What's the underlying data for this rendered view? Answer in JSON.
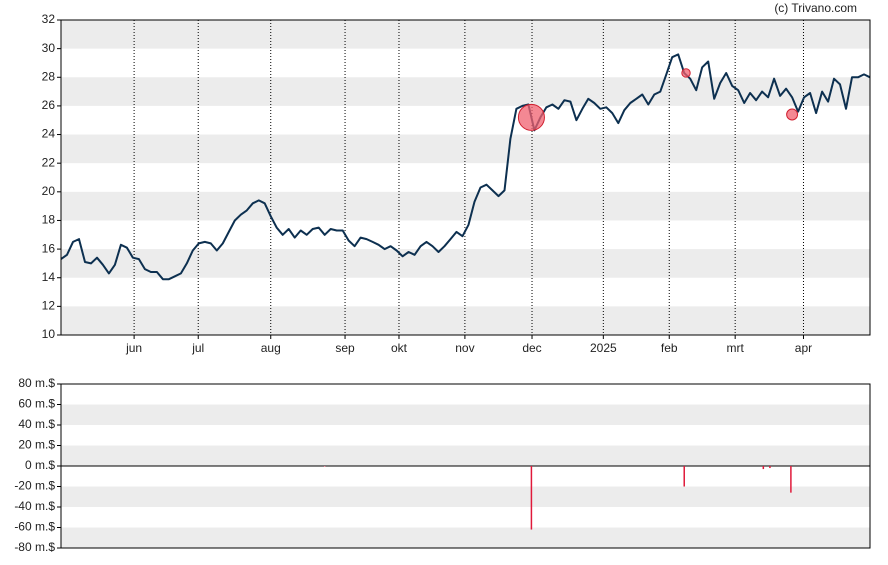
{
  "credit": "(c) Trivano.com",
  "chart_data": [
    {
      "type": "line",
      "color": "#0d3050",
      "bands": true,
      "values": [
        15.3,
        15.6,
        16.5,
        16.7,
        15.1,
        15.0,
        15.4,
        14.9,
        14.3,
        14.9,
        16.3,
        16.1,
        15.4,
        15.3,
        14.6,
        14.4,
        14.4,
        13.9,
        13.9,
        14.1,
        14.3,
        15.0,
        15.9,
        16.4,
        16.5,
        16.4,
        15.9,
        16.4,
        17.2,
        18.0,
        18.4,
        18.7,
        19.2,
        19.4,
        19.2,
        18.3,
        17.5,
        17.0,
        17.4,
        16.8,
        17.3,
        17.0,
        17.4,
        17.5,
        17.0,
        17.4,
        17.3,
        17.3,
        16.6,
        16.2,
        16.8,
        16.7,
        16.5,
        16.3,
        16.0,
        16.2,
        15.9,
        15.5,
        15.8,
        15.6,
        16.2,
        16.5,
        16.2,
        15.8,
        16.2,
        16.7,
        17.2,
        16.9,
        17.7,
        19.3,
        20.3,
        20.5,
        20.1,
        19.7,
        20.1,
        23.7,
        25.8,
        26.0,
        26.1,
        24.3,
        25.2,
        25.9,
        26.1,
        25.8,
        26.4,
        26.3,
        25.0,
        25.8,
        26.5,
        26.2,
        25.8,
        25.9,
        25.5,
        24.8,
        25.7,
        26.2,
        26.5,
        26.8,
        26.1,
        26.8,
        27.0,
        28.2,
        29.4,
        29.6,
        28.3,
        27.9,
        27.1,
        28.7,
        29.1,
        26.5,
        27.6,
        28.3,
        27.4,
        27.1,
        26.2,
        26.9,
        26.4,
        27.0,
        26.6,
        27.9,
        26.7,
        27.2,
        26.6,
        25.6,
        26.6,
        26.9,
        25.5,
        27.0,
        26.3,
        27.9,
        27.5,
        25.8,
        28.0,
        28.0,
        28.2,
        28.0
      ],
      "markers": {
        "color": "#f0606f",
        "x": [
          78.5,
          104.3,
          122
        ],
        "values": [
          25.2,
          28.3,
          25.4
        ],
        "sizes": [
          62,
          20,
          26
        ]
      },
      "xlim": [
        0,
        135
      ],
      "xticks": [
        {
          "value": 12.2,
          "label": "jun"
        },
        {
          "value": 22.9,
          "label": "jul"
        },
        {
          "value": 35,
          "label": "aug"
        },
        {
          "value": 47.4,
          "label": "sep"
        },
        {
          "value": 56.4,
          "label": "okt"
        },
        {
          "value": 67.4,
          "label": "nov"
        },
        {
          "value": 78.6,
          "label": "dec"
        },
        {
          "value": 90.5,
          "label": "2025"
        },
        {
          "value": 101.5,
          "label": "feb"
        },
        {
          "value": 112.5,
          "label": "mrt"
        },
        {
          "value": 123.9,
          "label": "apr"
        }
      ],
      "ylim": [
        10,
        32
      ],
      "yticks": [
        10,
        12,
        14,
        16,
        18,
        20,
        22,
        24,
        26,
        28,
        30,
        32
      ]
    },
    {
      "type": "bar",
      "color": "#e0193a",
      "bands": true,
      "x": [
        44,
        78.5,
        104,
        117.2,
        118.3,
        121.8
      ],
      "values": [
        -0.5,
        -62,
        -20,
        -3,
        -2,
        -26
      ],
      "xlim": [
        0,
        135
      ],
      "ylim": [
        -80,
        80
      ],
      "yticks": [
        {
          "value": -80,
          "label": "-80 m.$"
        },
        {
          "value": -60,
          "label": "-60 m.$"
        },
        {
          "value": -40,
          "label": "-40 m.$"
        },
        {
          "value": -20,
          "label": "-20 m.$"
        },
        {
          "value": 0,
          "label": "0 m.$"
        },
        {
          "value": 20,
          "label": "20 m.$"
        },
        {
          "value": 40,
          "label": "40 m.$"
        },
        {
          "value": 60,
          "label": "60 m.$"
        },
        {
          "value": 80,
          "label": "80 m.$"
        }
      ]
    }
  ]
}
